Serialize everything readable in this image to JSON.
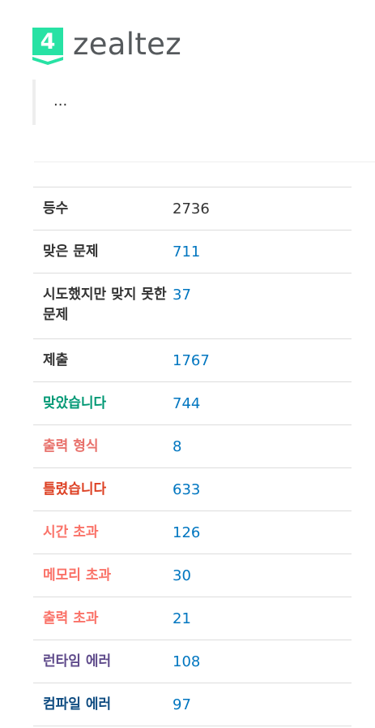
{
  "profile": {
    "tier_number": "4",
    "tier_color": "#27e2a4",
    "username": "zealtez",
    "bio": "..."
  },
  "stats": [
    {
      "label": "등수",
      "value": "2736",
      "label_color": "#333333",
      "value_color": "#333333"
    },
    {
      "label": "맞은 문제",
      "value": "711",
      "label_color": "#333333",
      "value_color": "#0076c0"
    },
    {
      "label": "시도했지만 맞지 못한 문제",
      "value": "37",
      "label_color": "#333333",
      "value_color": "#0076c0"
    },
    {
      "label": "제출",
      "value": "1767",
      "label_color": "#333333",
      "value_color": "#0076c0"
    },
    {
      "label": "맞았습니다",
      "value": "744",
      "label_color": "#009874",
      "value_color": "#0076c0"
    },
    {
      "label": "출력 형식",
      "value": "8",
      "label_color": "#e8716b",
      "value_color": "#0076c0"
    },
    {
      "label": "틀렸습니다",
      "value": "633",
      "label_color": "#dd4124",
      "value_color": "#0076c0"
    },
    {
      "label": "시간 초과",
      "value": "126",
      "label_color": "#fa7268",
      "value_color": "#0076c0"
    },
    {
      "label": "메모리 초과",
      "value": "30",
      "label_color": "#fa7268",
      "value_color": "#0076c0"
    },
    {
      "label": "출력 초과",
      "value": "21",
      "label_color": "#fa7268",
      "value_color": "#0076c0"
    },
    {
      "label": "런타임 에러",
      "value": "108",
      "label_color": "#5f4b8b",
      "value_color": "#0076c0"
    },
    {
      "label": "컴파일 에러",
      "value": "97",
      "label_color": "#0f4c81",
      "value_color": "#0076c0"
    }
  ]
}
